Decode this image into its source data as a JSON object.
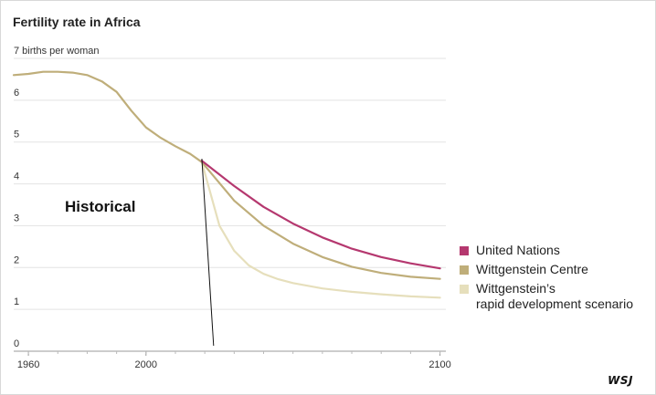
{
  "title": "Fertility rate in Africa",
  "logo": "WSJ",
  "chart_data": {
    "type": "line",
    "title": "Fertility rate in Africa",
    "ylabel": "births per woman",
    "xlim": [
      1955,
      2102
    ],
    "ylim": [
      0,
      7
    ],
    "y_ticks": [
      0,
      1,
      2,
      3,
      4,
      5,
      6,
      7
    ],
    "y_tick_labels": [
      "0",
      "1",
      "2",
      "3",
      "4",
      "5",
      "6",
      "7 births per woman"
    ],
    "x_ticks": [
      1960,
      2000,
      2100
    ],
    "x_tick_labels": [
      "1960",
      "2000",
      "2100"
    ],
    "grid": true,
    "legend_position": "right",
    "annotations": [
      {
        "text": "Historical"
      }
    ],
    "divider_year": 2020,
    "series": [
      {
        "name": "Historical",
        "color": "#bfae7a",
        "x": [
          1955,
          1960,
          1965,
          1970,
          1975,
          1980,
          1985,
          1990,
          1995,
          2000,
          2005,
          2010,
          2015,
          2019
        ],
        "y": [
          6.6,
          6.63,
          6.68,
          6.68,
          6.66,
          6.6,
          6.45,
          6.2,
          5.75,
          5.35,
          5.1,
          4.9,
          4.72,
          4.52
        ]
      },
      {
        "name": "United Nations",
        "color": "#b5386f",
        "x": [
          2019,
          2030,
          2040,
          2050,
          2060,
          2070,
          2080,
          2090,
          2100
        ],
        "y": [
          4.55,
          3.95,
          3.45,
          3.05,
          2.72,
          2.45,
          2.25,
          2.1,
          1.98
        ]
      },
      {
        "name": "Wittgenstein Centre",
        "color": "#bfae7a",
        "x": [
          2019,
          2030,
          2040,
          2050,
          2060,
          2070,
          2080,
          2090,
          2100
        ],
        "y": [
          4.52,
          3.6,
          3.0,
          2.57,
          2.25,
          2.02,
          1.87,
          1.78,
          1.73
        ]
      },
      {
        "name": "Wittgenstein’s\nrapid development scenario",
        "color": "#e6dfbc",
        "x": [
          2019,
          2025,
          2030,
          2035,
          2040,
          2045,
          2050,
          2060,
          2070,
          2080,
          2090,
          2100
        ],
        "y": [
          4.52,
          3.0,
          2.4,
          2.05,
          1.85,
          1.72,
          1.63,
          1.5,
          1.42,
          1.36,
          1.31,
          1.28
        ]
      }
    ]
  },
  "legend": [
    {
      "label": "United Nations",
      "color": "#b5386f"
    },
    {
      "label": "Wittgenstein Centre",
      "color": "#bfae7a"
    },
    {
      "label": "Wittgenstein’s\nrapid development scenario",
      "color": "#e6dfbc"
    }
  ]
}
